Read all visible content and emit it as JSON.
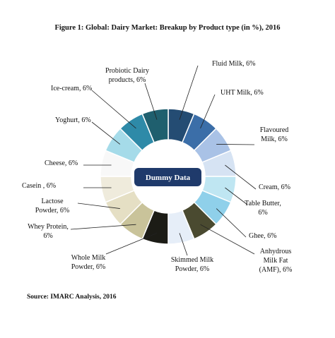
{
  "chart_data": {
    "type": "donut",
    "title": "Figure 1: Global: Dairy Market: Breakup by Product type (in %), 2016",
    "center_label": "Dummy Data",
    "source": "Source: IMARC Analysis, 2016",
    "categories": [
      [
        "Fluid Milk, 6%"
      ],
      [
        "UHT Milk, 6%"
      ],
      [
        "Flavoured",
        "Milk, 6%"
      ],
      [
        "Cream, 6%"
      ],
      [
        "Table Butter,",
        "6%"
      ],
      [
        "Ghee, 6%"
      ],
      [
        "Anhydrous",
        "Milk Fat",
        "(AMF), 6%"
      ],
      [
        "Skimmed Milk",
        "Powder, 6%"
      ],
      [
        "Whole Milk",
        "Powder, 6%"
      ],
      [
        "Whey Protein,",
        "6%"
      ],
      [
        "Lactose",
        "Powder, 6%"
      ],
      [
        "Casein , 6%"
      ],
      [
        "Cheese, 6%"
      ],
      [
        "Yoghurt, 6%"
      ],
      [
        "Ice-cream, 6%"
      ],
      [
        "Probiotic Dairy",
        "products, 6%"
      ]
    ],
    "values": [
      6,
      6,
      6,
      6,
      6,
      6,
      6,
      6,
      6,
      6,
      6,
      6,
      6,
      6,
      6,
      6
    ],
    "colors": [
      "#244c73",
      "#3b6ea8",
      "#a9c2e6",
      "#d6e3f3",
      "#bfe6f2",
      "#8fd0ea",
      "#4a4a30",
      "#e6eef8",
      "#1c1c16",
      "#c9c39a",
      "#e5dfc4",
      "#efebdc",
      "#f8f8f8",
      "#a5dbe9",
      "#2e8aa8",
      "#1f5f6e"
    ]
  }
}
